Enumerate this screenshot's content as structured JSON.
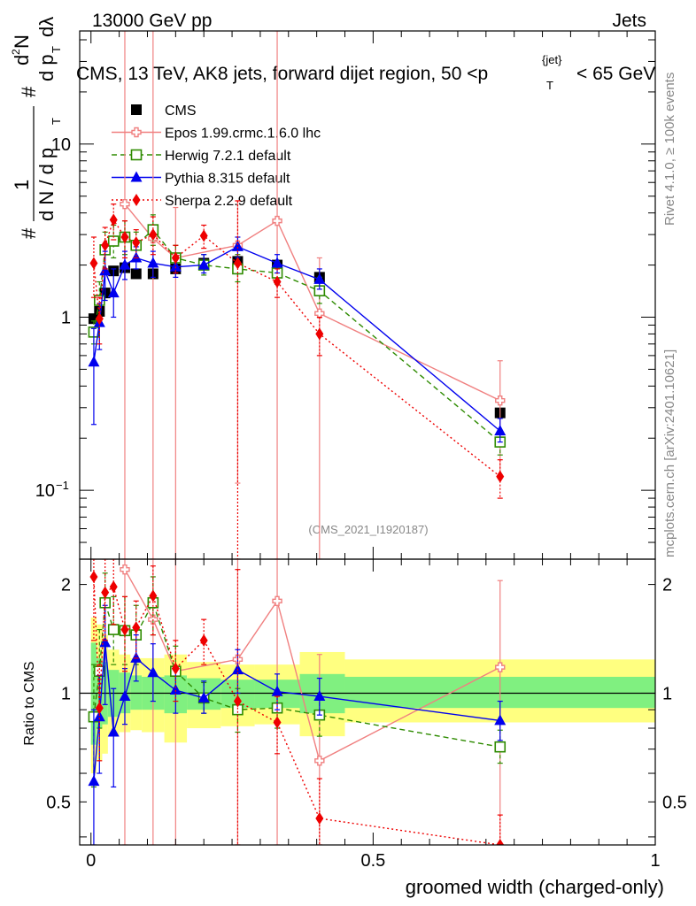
{
  "header": {
    "left": "13000 GeV pp",
    "right": "Jets"
  },
  "title": {
    "main": "CMS, 13 TeV, AK8 jets, forward dijet region, 50 <p",
    "sub": "T",
    "sup": "{jet}",
    "tail": "< 65 GeV"
  },
  "side_text": {
    "rivet": "Rivet 4.1.0, ≥ 100k events",
    "mcplots": "mcplots.cern.ch [arXiv:2401.10621]"
  },
  "watermark": "(CMS_2021_I1920187)",
  "chart_data": [
    {
      "type": "line",
      "panel": "main",
      "yscale": "log",
      "xlim": [
        -0.02,
        1.0
      ],
      "ylim": [
        0.04,
        45
      ],
      "xlabel": "groomed width (charged-only)",
      "ylabel_parts": [
        "#",
        "1",
        "d N / d p",
        "T",
        "#",
        "d p",
        "T",
        "d",
        "2",
        "N",
        "dλ"
      ],
      "y_ticks": [
        {
          "v": 0.1,
          "label": "10",
          "exp": "−1"
        },
        {
          "v": 1,
          "label": "1",
          "exp": ""
        },
        {
          "v": 10,
          "label": "10",
          "exp": ""
        }
      ],
      "x_ticks": [
        {
          "v": 0,
          "label": "0"
        },
        {
          "v": 0.5,
          "label": "0.5"
        },
        {
          "v": 1,
          "label": "1"
        }
      ],
      "series": [
        {
          "name": "CMS",
          "color": "#000000",
          "marker": "square-filled",
          "line": "none",
          "points": [
            {
              "x": 0.005,
              "y": 0.98
            },
            {
              "x": 0.015,
              "y": 1.08
            },
            {
              "x": 0.025,
              "y": 1.38
            },
            {
              "x": 0.04,
              "y": 1.85
            },
            {
              "x": 0.06,
              "y": 1.93
            },
            {
              "x": 0.08,
              "y": 1.78
            },
            {
              "x": 0.11,
              "y": 1.78
            },
            {
              "x": 0.15,
              "y": 1.9
            },
            {
              "x": 0.2,
              "y": 2.05
            },
            {
              "x": 0.26,
              "y": 2.1
            },
            {
              "x": 0.33,
              "y": 2.0
            },
            {
              "x": 0.405,
              "y": 1.7
            },
            {
              "x": 0.725,
              "y": 0.28
            }
          ]
        },
        {
          "name": "Epos 1.99.crmc.1.6.0 lhc",
          "color": "#f08080",
          "marker": "cross-open",
          "line": "solid",
          "points": [
            {
              "x": 0.06,
              "y": 4.5,
              "lo": 0.04,
              "hi": 45
            },
            {
              "x": 0.11,
              "y": 2.85,
              "lo": 0.04,
              "hi": 45
            },
            {
              "x": 0.15,
              "y": 2.2,
              "lo": 0.04,
              "hi": 4.3
            },
            {
              "x": 0.26,
              "y": 2.6,
              "lo": 0.11,
              "hi": 4.7
            },
            {
              "x": 0.33,
              "y": 3.6,
              "lo": 0.04,
              "hi": 45
            },
            {
              "x": 0.405,
              "y": 1.05,
              "lo": 0.04,
              "hi": 2.2
            },
            {
              "x": 0.725,
              "y": 0.33,
              "lo": 0.12,
              "hi": 0.56
            }
          ]
        },
        {
          "name": "Herwig 7.2.1 default",
          "color": "#2e8b00",
          "marker": "square-open",
          "line": "dashed",
          "points": [
            {
              "x": 0.005,
              "y": 0.82,
              "lo": 0.7,
              "hi": 0.95
            },
            {
              "x": 0.015,
              "y": 1.25,
              "lo": 0.95,
              "hi": 1.6
            },
            {
              "x": 0.025,
              "y": 2.45,
              "lo": 1.9,
              "hi": 3.1
            },
            {
              "x": 0.04,
              "y": 2.75,
              "lo": 2.2,
              "hi": 3.4
            },
            {
              "x": 0.06,
              "y": 2.9,
              "lo": 2.3,
              "hi": 3.6
            },
            {
              "x": 0.08,
              "y": 2.6,
              "lo": 2.2,
              "hi": 3.1
            },
            {
              "x": 0.11,
              "y": 3.2,
              "lo": 2.6,
              "hi": 3.9
            },
            {
              "x": 0.15,
              "y": 2.2,
              "lo": 1.9,
              "hi": 2.6
            },
            {
              "x": 0.2,
              "y": 2.0,
              "lo": 1.75,
              "hi": 2.3
            },
            {
              "x": 0.26,
              "y": 1.9,
              "lo": 1.6,
              "hi": 2.3
            },
            {
              "x": 0.33,
              "y": 1.8,
              "lo": 1.55,
              "hi": 2.1
            },
            {
              "x": 0.405,
              "y": 1.42,
              "lo": 1.2,
              "hi": 1.7
            },
            {
              "x": 0.725,
              "y": 0.19,
              "lo": 0.16,
              "hi": 0.22
            }
          ]
        },
        {
          "name": "Pythia 8.315 default",
          "color": "#0000ee",
          "marker": "triangle-filled",
          "line": "solid",
          "points": [
            {
              "x": 0.005,
              "y": 0.55,
              "lo": 0.24,
              "hi": 0.86
            },
            {
              "x": 0.015,
              "y": 0.93,
              "lo": 0.65,
              "hi": 1.2
            },
            {
              "x": 0.025,
              "y": 1.85,
              "lo": 1.25,
              "hi": 2.4
            },
            {
              "x": 0.04,
              "y": 1.38,
              "lo": 1.0,
              "hi": 1.9
            },
            {
              "x": 0.06,
              "y": 2.0,
              "lo": 1.65,
              "hi": 2.4
            },
            {
              "x": 0.08,
              "y": 2.2,
              "lo": 1.9,
              "hi": 2.55
            },
            {
              "x": 0.11,
              "y": 2.05,
              "lo": 1.7,
              "hi": 2.4
            },
            {
              "x": 0.15,
              "y": 1.95,
              "lo": 1.7,
              "hi": 2.25
            },
            {
              "x": 0.2,
              "y": 2.0,
              "lo": 1.8,
              "hi": 2.3
            },
            {
              "x": 0.26,
              "y": 2.55,
              "lo": 2.2,
              "hi": 2.9
            },
            {
              "x": 0.33,
              "y": 2.05,
              "lo": 1.8,
              "hi": 2.3
            },
            {
              "x": 0.405,
              "y": 1.65,
              "lo": 1.45,
              "hi": 1.9
            },
            {
              "x": 0.725,
              "y": 0.22,
              "lo": 0.19,
              "hi": 0.26
            }
          ]
        },
        {
          "name": "Sherpa 2.2.9 default",
          "color": "#ee0000",
          "marker": "diamond-filled",
          "line": "dotted",
          "points": [
            {
              "x": 0.005,
              "y": 2.05,
              "lo": 1.3,
              "hi": 2.9
            },
            {
              "x": 0.015,
              "y": 0.98,
              "lo": 0.7,
              "hi": 1.3
            },
            {
              "x": 0.025,
              "y": 2.6,
              "lo": 1.9,
              "hi": 3.3
            },
            {
              "x": 0.04,
              "y": 3.65,
              "lo": 2.8,
              "hi": 4.5
            },
            {
              "x": 0.06,
              "y": 2.9,
              "lo": 2.2,
              "hi": 3.6
            },
            {
              "x": 0.08,
              "y": 2.7,
              "lo": 2.2,
              "hi": 3.2
            },
            {
              "x": 0.11,
              "y": 3.0,
              "lo": 2.3,
              "hi": 3.8
            },
            {
              "x": 0.15,
              "y": 2.2,
              "lo": 1.8,
              "hi": 2.6
            },
            {
              "x": 0.2,
              "y": 2.95,
              "lo": 2.5,
              "hi": 3.4
            },
            {
              "x": 0.26,
              "y": 2.05,
              "lo": 0.04,
              "hi": 4.7
            },
            {
              "x": 0.33,
              "y": 1.6,
              "lo": 1.3,
              "hi": 1.9
            },
            {
              "x": 0.405,
              "y": 0.8,
              "lo": 0.6,
              "hi": 1.0
            },
            {
              "x": 0.725,
              "y": 0.12,
              "lo": 0.09,
              "hi": 0.15
            }
          ]
        }
      ]
    },
    {
      "type": "line",
      "panel": "ratio",
      "yscale": "log",
      "xlim": [
        -0.02,
        1.0
      ],
      "ylim": [
        0.38,
        2.35
      ],
      "ylabel": "Ratio to CMS",
      "y_ticks": [
        {
          "v": 0.5,
          "label": "0.5"
        },
        {
          "v": 1,
          "label": "1"
        },
        {
          "v": 2,
          "label": "2"
        }
      ],
      "bands": [
        {
          "x0": 0.0,
          "x1": 0.01,
          "stat": [
            0.72,
            1.38
          ],
          "tot": [
            0.6,
            1.62
          ]
        },
        {
          "x0": 0.01,
          "x1": 0.02,
          "stat": [
            0.8,
            1.25
          ],
          "tot": [
            0.65,
            1.55
          ]
        },
        {
          "x0": 0.02,
          "x1": 0.03,
          "stat": [
            0.82,
            1.22
          ],
          "tot": [
            0.68,
            1.45
          ]
        },
        {
          "x0": 0.03,
          "x1": 0.05,
          "stat": [
            0.86,
            1.16
          ],
          "tot": [
            0.76,
            1.32
          ]
        },
        {
          "x0": 0.05,
          "x1": 0.07,
          "stat": [
            0.88,
            1.14
          ],
          "tot": [
            0.78,
            1.28
          ]
        },
        {
          "x0": 0.07,
          "x1": 0.09,
          "stat": [
            0.9,
            1.12
          ],
          "tot": [
            0.79,
            1.25
          ]
        },
        {
          "x0": 0.09,
          "x1": 0.13,
          "stat": [
            0.9,
            1.11
          ],
          "tot": [
            0.78,
            1.25
          ]
        },
        {
          "x0": 0.13,
          "x1": 0.17,
          "stat": [
            0.88,
            1.12
          ],
          "tot": [
            0.73,
            1.28
          ]
        },
        {
          "x0": 0.17,
          "x1": 0.23,
          "stat": [
            0.9,
            1.1
          ],
          "tot": [
            0.8,
            1.22
          ]
        },
        {
          "x0": 0.23,
          "x1": 0.29,
          "stat": [
            0.91,
            1.09
          ],
          "tot": [
            0.81,
            1.2
          ]
        },
        {
          "x0": 0.29,
          "x1": 0.37,
          "stat": [
            0.91,
            1.09
          ],
          "tot": [
            0.82,
            1.2
          ]
        },
        {
          "x0": 0.37,
          "x1": 0.45,
          "stat": [
            0.88,
            1.13
          ],
          "tot": [
            0.76,
            1.3
          ]
        },
        {
          "x0": 0.45,
          "x1": 1.0,
          "stat": [
            0.91,
            1.11
          ],
          "tot": [
            0.83,
            1.24
          ]
        }
      ],
      "series": [
        {
          "name": "Epos 1.99.crmc.1.6.0 lhc",
          "color": "#f08080",
          "marker": "cross-open",
          "line": "solid",
          "points": [
            {
              "x": 0.06,
              "y": 2.2,
              "lo": 0.38,
              "hi": 2.35
            },
            {
              "x": 0.11,
              "y": 1.6,
              "lo": 0.38,
              "hi": 2.35
            },
            {
              "x": 0.15,
              "y": 1.15,
              "lo": 0.38,
              "hi": 2.35
            },
            {
              "x": 0.26,
              "y": 1.24,
              "lo": 0.38,
              "hi": 2.35
            },
            {
              "x": 0.33,
              "y": 1.8,
              "lo": 0.38,
              "hi": 2.35
            },
            {
              "x": 0.405,
              "y": 0.65,
              "lo": 0.38,
              "hi": 1.28
            },
            {
              "x": 0.725,
              "y": 1.18,
              "lo": 0.38,
              "hi": 2.05
            }
          ]
        },
        {
          "name": "Herwig 7.2.1 default",
          "color": "#2e8b00",
          "marker": "square-open",
          "line": "dashed",
          "points": [
            {
              "x": 0.005,
              "y": 0.86,
              "lo": 0.55,
              "hi": 1.2
            },
            {
              "x": 0.015,
              "y": 1.15,
              "lo": 0.8,
              "hi": 1.5
            },
            {
              "x": 0.025,
              "y": 1.78,
              "lo": 1.4,
              "hi": 2.15
            },
            {
              "x": 0.04,
              "y": 1.5,
              "lo": 1.2,
              "hi": 1.85
            },
            {
              "x": 0.06,
              "y": 1.49,
              "lo": 1.2,
              "hi": 1.85
            },
            {
              "x": 0.08,
              "y": 1.45,
              "lo": 1.2,
              "hi": 1.75
            },
            {
              "x": 0.11,
              "y": 1.78,
              "lo": 1.45,
              "hi": 2.1
            },
            {
              "x": 0.15,
              "y": 1.15,
              "lo": 1.0,
              "hi": 1.35
            },
            {
              "x": 0.2,
              "y": 0.97,
              "lo": 0.88,
              "hi": 1.07
            },
            {
              "x": 0.26,
              "y": 0.9,
              "lo": 0.78,
              "hi": 1.03
            },
            {
              "x": 0.33,
              "y": 0.91,
              "lo": 0.8,
              "hi": 1.02
            },
            {
              "x": 0.405,
              "y": 0.87,
              "lo": 0.76,
              "hi": 0.98
            },
            {
              "x": 0.725,
              "y": 0.71,
              "lo": 0.64,
              "hi": 0.79
            }
          ]
        },
        {
          "name": "Pythia 8.315 default",
          "color": "#0000ee",
          "marker": "triangle-filled",
          "line": "solid",
          "points": [
            {
              "x": 0.005,
              "y": 0.57,
              "lo": 0.38,
              "hi": 0.9
            },
            {
              "x": 0.015,
              "y": 0.86,
              "lo": 0.6,
              "hi": 1.12
            },
            {
              "x": 0.025,
              "y": 1.38,
              "lo": 0.93,
              "hi": 1.75
            },
            {
              "x": 0.04,
              "y": 0.78,
              "lo": 0.55,
              "hi": 1.03
            },
            {
              "x": 0.06,
              "y": 0.98,
              "lo": 0.82,
              "hi": 1.17
            },
            {
              "x": 0.08,
              "y": 1.25,
              "lo": 1.08,
              "hi": 1.45
            },
            {
              "x": 0.11,
              "y": 1.14,
              "lo": 0.95,
              "hi": 1.37
            },
            {
              "x": 0.15,
              "y": 1.02,
              "lo": 0.88,
              "hi": 1.18
            },
            {
              "x": 0.2,
              "y": 0.97,
              "lo": 0.88,
              "hi": 1.08
            },
            {
              "x": 0.26,
              "y": 1.16,
              "lo": 1.0,
              "hi": 1.32
            },
            {
              "x": 0.33,
              "y": 1.01,
              "lo": 0.9,
              "hi": 1.13
            },
            {
              "x": 0.405,
              "y": 0.98,
              "lo": 0.87,
              "hi": 1.1
            },
            {
              "x": 0.725,
              "y": 0.84,
              "lo": 0.74,
              "hi": 0.95
            }
          ]
        },
        {
          "name": "Sherpa 2.2.9 default",
          "color": "#ee0000",
          "marker": "diamond-filled",
          "line": "dotted",
          "points": [
            {
              "x": 0.005,
              "y": 2.1,
              "lo": 1.4,
              "hi": 2.35
            },
            {
              "x": 0.015,
              "y": 0.91,
              "lo": 0.65,
              "hi": 1.2
            },
            {
              "x": 0.025,
              "y": 1.9,
              "lo": 1.4,
              "hi": 2.35
            },
            {
              "x": 0.04,
              "y": 1.97,
              "lo": 1.55,
              "hi": 2.35
            },
            {
              "x": 0.06,
              "y": 1.5,
              "lo": 1.15,
              "hi": 1.85
            },
            {
              "x": 0.08,
              "y": 1.52,
              "lo": 1.25,
              "hi": 1.8
            },
            {
              "x": 0.11,
              "y": 1.86,
              "lo": 1.45,
              "hi": 2.25
            },
            {
              "x": 0.15,
              "y": 1.17,
              "lo": 0.95,
              "hi": 1.4
            },
            {
              "x": 0.2,
              "y": 1.4,
              "lo": 1.2,
              "hi": 1.6
            },
            {
              "x": 0.26,
              "y": 0.95,
              "lo": 0.38,
              "hi": 2.2
            },
            {
              "x": 0.33,
              "y": 0.83,
              "lo": 0.68,
              "hi": 0.98
            },
            {
              "x": 0.405,
              "y": 0.45,
              "lo": 0.38,
              "hi": 0.58
            },
            {
              "x": 0.725,
              "y": 0.38,
              "lo": 0.38,
              "hi": 0.46
            }
          ]
        }
      ]
    }
  ]
}
